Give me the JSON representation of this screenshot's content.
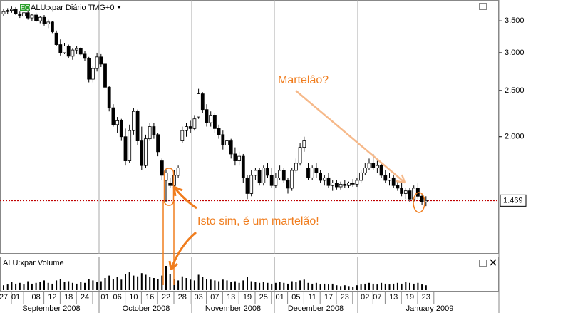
{
  "chart_data": {
    "type": "candlestick",
    "title": "ALU:xpar Diário TMG+0",
    "badge": "EQ",
    "volume_title": "ALU:xpar Volume",
    "log_scale": true,
    "ylim": [
      1.14,
      3.87
    ],
    "yticks": [
      {
        "value": 2,
        "label": "2.000"
      },
      {
        "value": 2.5,
        "label": "2.500"
      },
      {
        "value": 3,
        "label": "3.000"
      },
      {
        "value": 3.5,
        "label": "3.500"
      }
    ],
    "last_price": 1.469,
    "up_color": "#ffffff",
    "down_color": "#000000",
    "annotations": [
      "Martelâo?",
      "Isto sim, é um martelão!"
    ],
    "month_labels": [
      "September 2008",
      "October 2008",
      "November 2008",
      "December 2008",
      "January 2009"
    ],
    "categories": [
      "27",
      null,
      null,
      "01",
      null,
      null,
      null,
      null,
      "08",
      null,
      null,
      null,
      "12",
      null,
      null,
      null,
      "18",
      null,
      null,
      null,
      "24",
      null,
      null,
      null,
      null,
      "01",
      null,
      null,
      "06",
      null,
      null,
      null,
      "10",
      null,
      null,
      null,
      "16",
      null,
      null,
      null,
      "22",
      null,
      null,
      null,
      "28",
      null,
      null,
      null,
      "03",
      null,
      null,
      null,
      "07",
      null,
      null,
      null,
      "13",
      null,
      null,
      null,
      "19",
      null,
      null,
      null,
      "25",
      null,
      null,
      null,
      "01",
      null,
      null,
      null,
      "05",
      null,
      null,
      null,
      "11",
      null,
      null,
      null,
      "17",
      null,
      null,
      null,
      "23",
      null,
      null,
      null,
      null,
      "02",
      null,
      null,
      "07",
      null,
      null,
      null,
      "13",
      null,
      null,
      null,
      "19",
      null,
      null,
      null,
      "23"
    ],
    "open": [
      3.62,
      3.66,
      3.68,
      3.7,
      3.62,
      3.58,
      3.64,
      3.55,
      3.6,
      3.5,
      3.56,
      3.45,
      3.48,
      3.3,
      3.12,
      3.0,
      3.1,
      2.95,
      3.04,
      3.06,
      2.98,
      2.92,
      2.64,
      2.78,
      2.94,
      2.84,
      2.54,
      2.3,
      2.12,
      2.16,
      2.0,
      1.78,
      2.06,
      2.26,
      1.96,
      1.74,
      1.98,
      2.1,
      2.02,
      1.78,
      1.62,
      1.6,
      1.58,
      1.66,
      1.96,
      2.06,
      2.1,
      2.08,
      2.2,
      2.46,
      2.28,
      2.14,
      2.22,
      2.08,
      2.02,
      1.92,
      1.96,
      1.84,
      1.78,
      1.82,
      1.64,
      1.52,
      1.66,
      1.7,
      1.6,
      1.72,
      1.66,
      1.58,
      1.64,
      1.7,
      1.62,
      1.56,
      1.7,
      1.76,
      1.9,
      1.72,
      1.64,
      1.72,
      1.68,
      1.62,
      1.64,
      1.58,
      1.6,
      1.57,
      1.59,
      1.58,
      1.6,
      1.59,
      1.62,
      1.68,
      1.72,
      1.76,
      1.72,
      1.74,
      1.66,
      1.62,
      1.64,
      1.58,
      1.56,
      1.52,
      1.54,
      1.48,
      1.56,
      1.5,
      1.46
    ],
    "high": [
      3.7,
      3.72,
      3.75,
      3.74,
      3.66,
      3.66,
      3.68,
      3.62,
      3.64,
      3.58,
      3.6,
      3.52,
      3.5,
      3.34,
      3.2,
      3.14,
      3.12,
      3.06,
      3.1,
      3.08,
      3.02,
      2.94,
      2.82,
      3.0,
      2.98,
      2.86,
      2.56,
      2.34,
      2.2,
      2.18,
      2.08,
      2.12,
      2.3,
      2.28,
      2.1,
      2.02,
      2.14,
      2.14,
      2.04,
      1.8,
      1.7,
      1.64,
      1.7,
      1.74,
      2.1,
      2.14,
      2.16,
      2.22,
      2.52,
      2.48,
      2.34,
      2.26,
      2.24,
      2.12,
      2.06,
      2.0,
      1.98,
      1.9,
      1.86,
      1.84,
      1.66,
      1.7,
      1.72,
      1.72,
      1.74,
      1.76,
      1.72,
      1.68,
      1.74,
      1.72,
      1.64,
      1.72,
      1.8,
      1.94,
      2.0,
      1.76,
      1.74,
      1.76,
      1.7,
      1.66,
      1.68,
      1.62,
      1.62,
      1.61,
      1.62,
      1.61,
      1.63,
      1.64,
      1.7,
      1.76,
      1.8,
      1.84,
      1.78,
      1.76,
      1.7,
      1.68,
      1.66,
      1.62,
      1.6,
      1.56,
      1.56,
      1.58,
      1.6,
      1.52,
      1.5
    ],
    "low": [
      3.58,
      3.62,
      3.64,
      3.6,
      3.55,
      3.56,
      3.52,
      3.5,
      3.48,
      3.46,
      3.42,
      3.38,
      3.3,
      3.1,
      2.96,
      2.98,
      2.92,
      2.9,
      2.98,
      2.96,
      2.88,
      2.6,
      2.6,
      2.74,
      2.8,
      2.5,
      2.26,
      2.1,
      2.04,
      1.96,
      1.74,
      1.76,
      2.02,
      1.92,
      1.7,
      1.72,
      1.96,
      1.98,
      1.82,
      1.62,
      1.46,
      1.56,
      1.56,
      1.64,
      1.94,
      2.0,
      2.04,
      2.06,
      2.18,
      2.24,
      2.1,
      2.1,
      2.04,
      1.98,
      1.88,
      1.86,
      1.8,
      1.74,
      1.74,
      1.6,
      1.48,
      1.5,
      1.62,
      1.58,
      1.58,
      1.64,
      1.56,
      1.56,
      1.62,
      1.6,
      1.52,
      1.54,
      1.68,
      1.74,
      1.86,
      1.62,
      1.62,
      1.64,
      1.6,
      1.58,
      1.56,
      1.54,
      1.55,
      1.55,
      1.56,
      1.56,
      1.57,
      1.57,
      1.6,
      1.66,
      1.7,
      1.7,
      1.68,
      1.64,
      1.6,
      1.58,
      1.56,
      1.54,
      1.5,
      1.48,
      1.46,
      1.46,
      1.48,
      1.44,
      1.43
    ],
    "close": [
      3.66,
      3.68,
      3.7,
      3.62,
      3.58,
      3.64,
      3.55,
      3.6,
      3.5,
      3.56,
      3.45,
      3.48,
      3.32,
      3.12,
      3.0,
      3.1,
      2.95,
      3.04,
      3.06,
      2.98,
      2.92,
      2.64,
      2.78,
      2.94,
      2.84,
      2.54,
      2.3,
      2.12,
      2.16,
      2.0,
      1.78,
      2.06,
      2.26,
      1.96,
      1.74,
      1.98,
      2.1,
      2.02,
      1.86,
      1.66,
      1.68,
      1.58,
      1.66,
      1.72,
      2.06,
      2.1,
      2.08,
      2.18,
      2.46,
      2.28,
      2.14,
      2.22,
      2.08,
      2.02,
      1.92,
      1.96,
      1.84,
      1.78,
      1.82,
      1.64,
      1.52,
      1.66,
      1.7,
      1.6,
      1.72,
      1.66,
      1.58,
      1.64,
      1.7,
      1.62,
      1.56,
      1.7,
      1.76,
      1.9,
      1.96,
      1.64,
      1.72,
      1.68,
      1.62,
      1.64,
      1.58,
      1.6,
      1.57,
      1.59,
      1.58,
      1.6,
      1.59,
      1.62,
      1.68,
      1.72,
      1.76,
      1.72,
      1.74,
      1.66,
      1.62,
      1.64,
      1.58,
      1.56,
      1.52,
      1.54,
      1.48,
      1.56,
      1.5,
      1.46,
      1.469
    ],
    "volume": [
      6,
      7,
      10,
      8,
      9,
      7,
      11,
      8,
      9,
      10,
      12,
      9,
      8,
      12,
      14,
      10,
      11,
      9,
      8,
      10,
      9,
      14,
      12,
      10,
      11,
      15,
      18,
      14,
      16,
      13,
      20,
      22,
      18,
      17,
      21,
      19,
      16,
      15,
      14,
      18,
      30,
      20,
      14,
      12,
      17,
      15,
      13,
      12,
      19,
      16,
      14,
      13,
      12,
      11,
      13,
      12,
      10,
      11,
      9,
      12,
      16,
      11,
      10,
      9,
      10,
      9,
      8,
      9,
      10,
      9,
      8,
      11,
      10,
      12,
      13,
      9,
      8,
      9,
      7,
      8,
      7,
      8,
      6,
      5,
      6,
      5,
      4,
      6,
      7,
      8,
      9,
      8,
      7,
      9,
      8,
      7,
      8,
      9,
      8,
      10,
      9,
      8,
      9,
      7,
      6
    ]
  }
}
